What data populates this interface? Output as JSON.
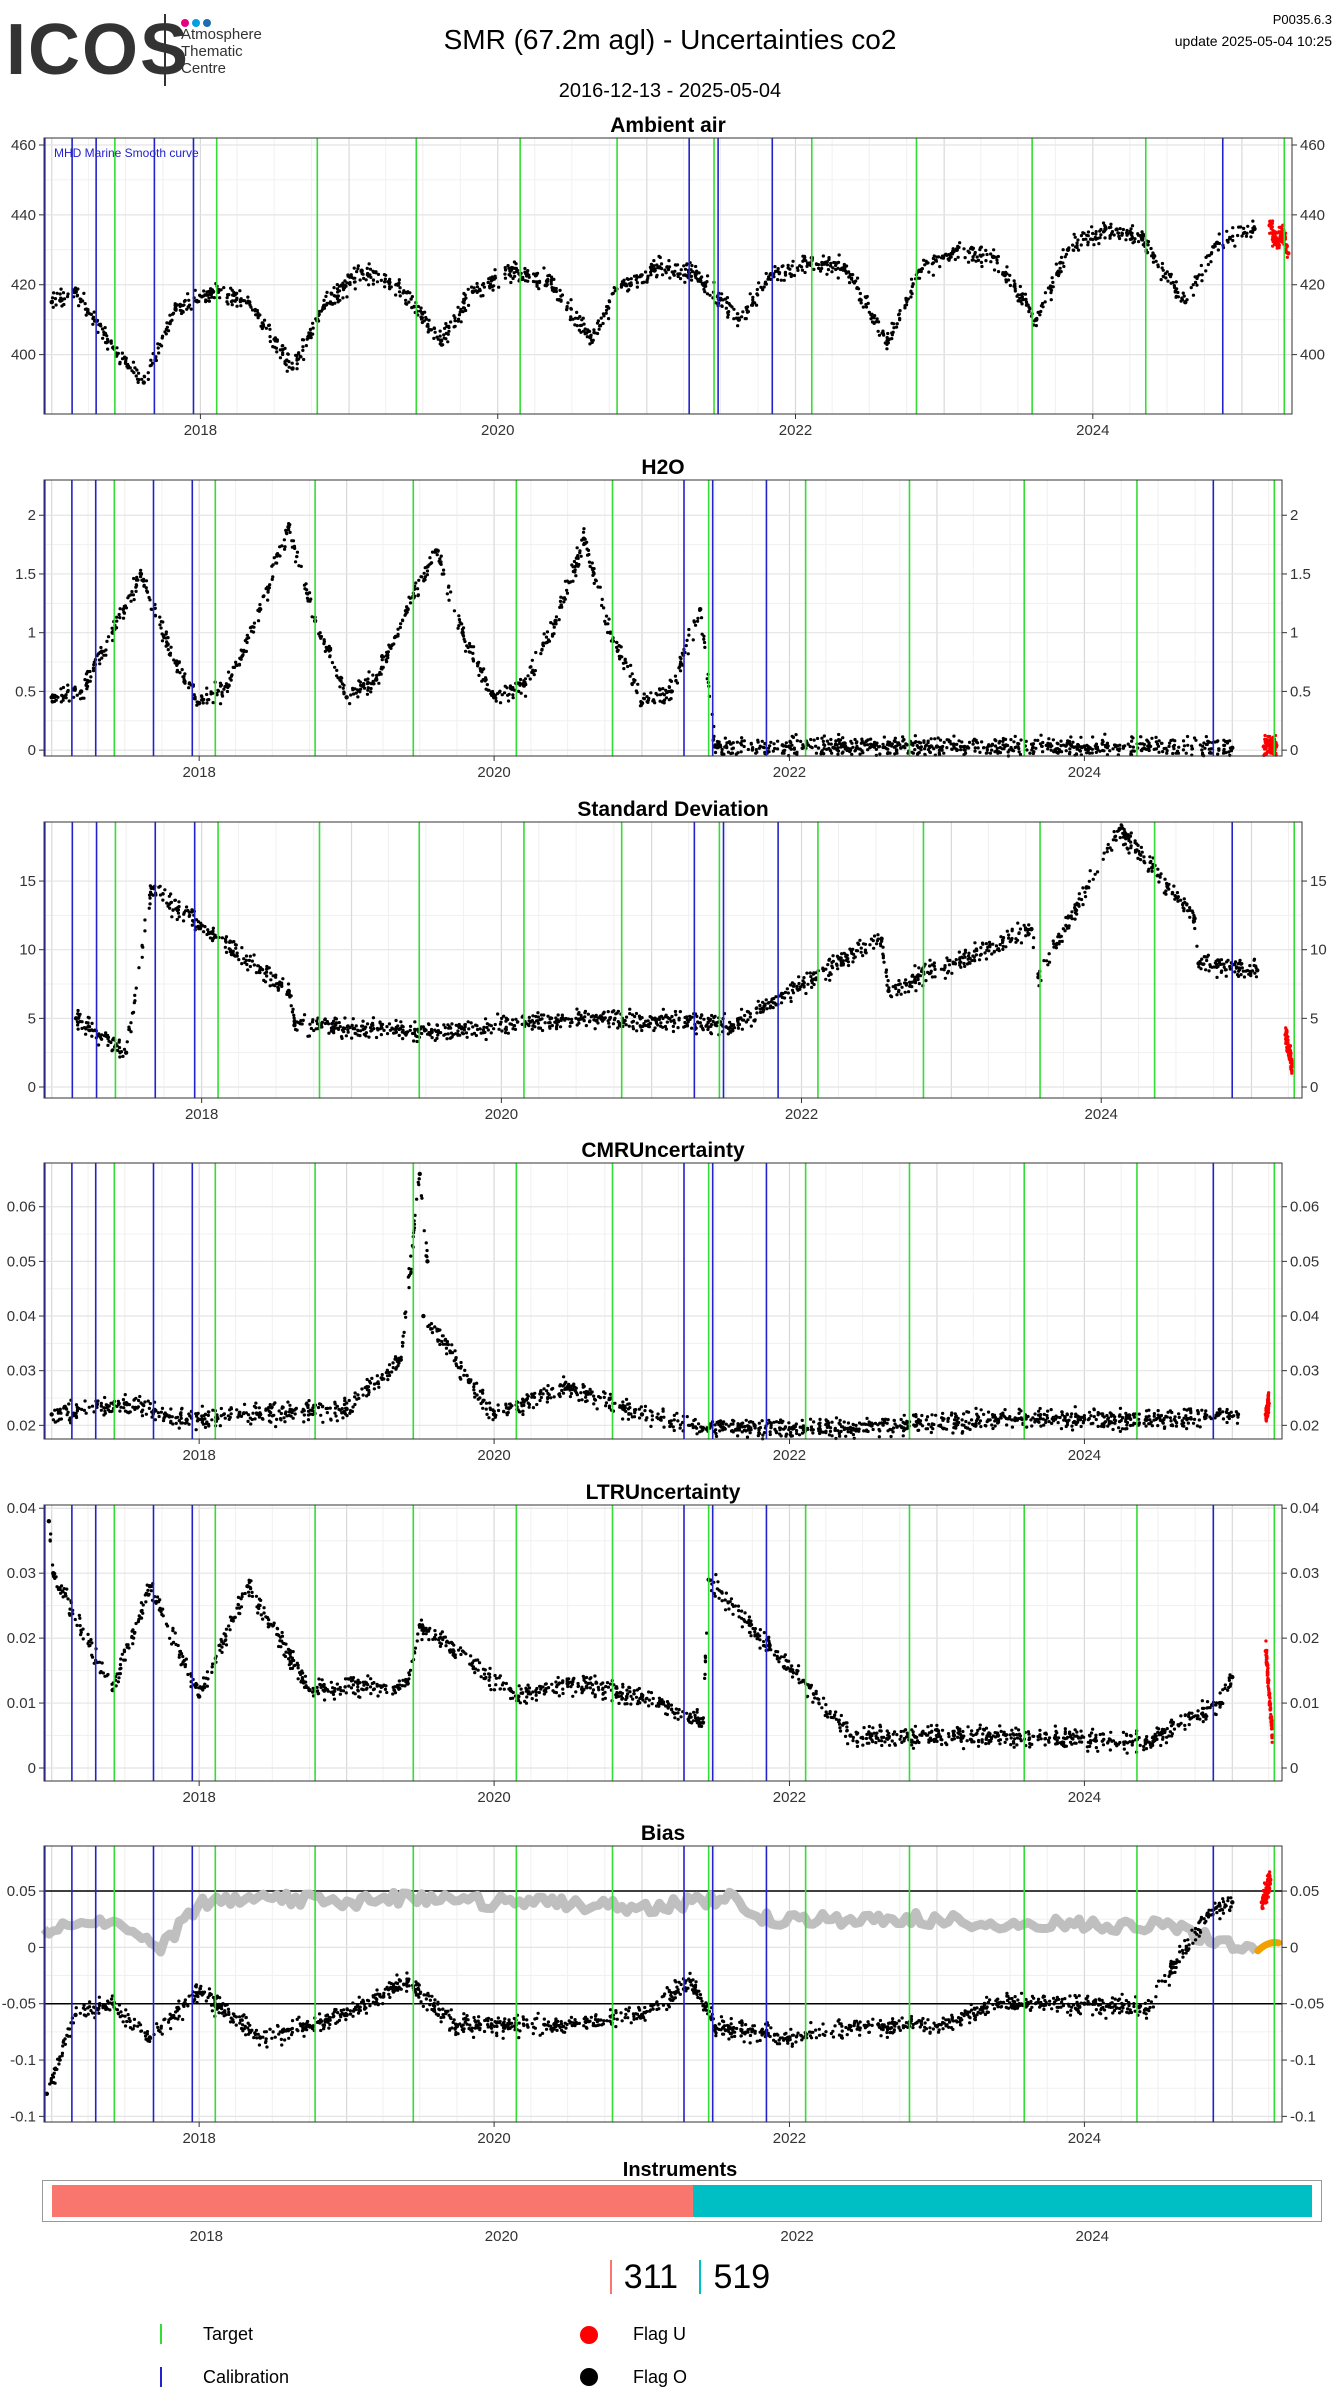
{
  "header": {
    "logo_word": "ICOS",
    "logo_sub": [
      "Atmosphere",
      "Thematic",
      "Centre"
    ],
    "title": "SMR  (67.2m agl) - Uncertainties co2",
    "date_range": "2016-12-13 - 2025-05-04",
    "version": "P0035.6.3",
    "update": "update  2025-05-04 10:25"
  },
  "colors": {
    "target": "#33dd33",
    "calibration": "#2222cc",
    "flag_u": "#ff0000",
    "flag_o": "#000000",
    "instrument_311": "#f8766d",
    "instrument_519": "#00bfc4",
    "smooth_curve": "#bfbfbf",
    "fit_orange": "#f0a000",
    "logo_dots": [
      "#e6007e",
      "#00a0e0",
      "#1d6db0"
    ]
  },
  "chart_data": [
    {
      "type": "scatter",
      "title": "Ambient air",
      "annotation": "MHD Marine Smooth curve",
      "x_range": [
        "2016-12-13",
        "2025-05-04"
      ],
      "ylim": [
        383,
        462
      ],
      "yticks": [
        400,
        420,
        440,
        460
      ],
      "xticks": [
        "2018",
        "2020",
        "2022",
        "2024"
      ],
      "series": [
        {
          "name": "Flag O",
          "color": "#000000",
          "points": [
            [
              "2017-01-01",
              415
            ],
            [
              "2017-03-01",
              418
            ],
            [
              "2017-06-01",
              402
            ],
            [
              "2017-08-15",
              392
            ],
            [
              "2017-11-01",
              413
            ],
            [
              "2018-02-01",
              418
            ],
            [
              "2018-05-01",
              415
            ],
            [
              "2018-08-15",
              396
            ],
            [
              "2018-11-01",
              414
            ],
            [
              "2019-02-01",
              424
            ],
            [
              "2019-05-01",
              420
            ],
            [
              "2019-08-15",
              404
            ],
            [
              "2019-11-01",
              418
            ],
            [
              "2020-02-01",
              424
            ],
            [
              "2020-05-01",
              421
            ],
            [
              "2020-08-15",
              405
            ],
            [
              "2020-11-01",
              420
            ],
            [
              "2021-02-01",
              425
            ],
            [
              "2021-05-01",
              423
            ],
            [
              "2021-08-15",
              410
            ],
            [
              "2021-11-01",
              423
            ],
            [
              "2022-02-01",
              426
            ],
            [
              "2022-05-01",
              425
            ],
            [
              "2022-08-15",
              404
            ],
            [
              "2022-11-01",
              424
            ],
            [
              "2023-02-01",
              430
            ],
            [
              "2023-05-01",
              428
            ],
            [
              "2023-08-15",
              410
            ],
            [
              "2023-11-01",
              430
            ],
            [
              "2024-02-01",
              436
            ],
            [
              "2024-05-01",
              433
            ],
            [
              "2024-08-15",
              415
            ],
            [
              "2024-11-01",
              432
            ],
            [
              "2025-02-01",
              436
            ]
          ]
        },
        {
          "name": "Flag U",
          "color": "#ff0000",
          "points": [
            [
              "2025-03-10",
              437
            ],
            [
              "2025-03-25",
              432
            ],
            [
              "2025-04-10",
              435
            ],
            [
              "2025-04-25",
              429
            ]
          ]
        }
      ]
    },
    {
      "type": "scatter",
      "title": "H2O",
      "x_range": [
        "2016-12-13",
        "2025-05-04"
      ],
      "ylim": [
        -0.05,
        2.3
      ],
      "yticks": [
        0.0,
        0.5,
        1.0,
        1.5,
        2.0
      ],
      "xticks": [
        "2018",
        "2020",
        "2022",
        "2024"
      ],
      "series": [
        {
          "name": "Flag O",
          "color": "#000000",
          "points": [
            [
              "2017-01-01",
              0.45
            ],
            [
              "2017-03-15",
              0.5
            ],
            [
              "2017-06-01",
              1.0
            ],
            [
              "2017-08-10",
              1.5
            ],
            [
              "2017-10-15",
              0.9
            ],
            [
              "2018-01-01",
              0.4
            ],
            [
              "2018-03-15",
              0.55
            ],
            [
              "2018-06-01",
              1.2
            ],
            [
              "2018-08-10",
              1.9
            ],
            [
              "2018-10-15",
              1.1
            ],
            [
              "2019-01-01",
              0.45
            ],
            [
              "2019-03-15",
              0.6
            ],
            [
              "2019-06-01",
              1.2
            ],
            [
              "2019-08-10",
              1.7
            ],
            [
              "2019-10-15",
              1.0
            ],
            [
              "2020-01-01",
              0.45
            ],
            [
              "2020-03-15",
              0.55
            ],
            [
              "2020-06-01",
              1.1
            ],
            [
              "2020-08-10",
              1.8
            ],
            [
              "2020-10-15",
              1.0
            ],
            [
              "2021-01-01",
              0.4
            ],
            [
              "2021-03-15",
              0.5
            ],
            [
              "2021-05-25",
              1.2
            ],
            [
              "2021-07-01",
              0.03
            ],
            [
              "2022-01-01",
              0.03
            ],
            [
              "2023-01-01",
              0.03
            ],
            [
              "2024-01-01",
              0.03
            ],
            [
              "2025-01-01",
              0.02
            ]
          ]
        },
        {
          "name": "Flag U",
          "color": "#ff0000",
          "points": [
            [
              "2025-03-20",
              0.03
            ],
            [
              "2025-04-20",
              0.04
            ]
          ]
        }
      ]
    },
    {
      "type": "scatter",
      "title": "Standard Deviation",
      "x_range": [
        "2016-12-13",
        "2025-05-04"
      ],
      "ylim": [
        -0.8,
        19.3
      ],
      "yticks": [
        0,
        5,
        10,
        15
      ],
      "xticks": [
        "2018",
        "2020",
        "2022",
        "2024"
      ],
      "series": [
        {
          "name": "Flag O",
          "color": "#000000",
          "points": [
            [
              "2017-03-01",
              5.0
            ],
            [
              "2017-07-01",
              2.5
            ],
            [
              "2017-09-01",
              14.5
            ],
            [
              "2018-08-01",
              7.0
            ],
            [
              "2018-08-15",
              4.5
            ],
            [
              "2019-07-15",
              4.0
            ],
            [
              "2020-07-15",
              5.0
            ],
            [
              "2021-07-15",
              4.5
            ],
            [
              "2022-07-15",
              10.8
            ],
            [
              "2022-08-01",
              7.0
            ],
            [
              "2023-07-15",
              11.5
            ],
            [
              "2023-08-01",
              8.0
            ],
            [
              "2024-02-15",
              18.8
            ],
            [
              "2024-08-15",
              12.3
            ],
            [
              "2024-08-25",
              9.0
            ],
            [
              "2025-01-15",
              8.5
            ]
          ]
        },
        {
          "name": "Flag U",
          "color": "#ff0000",
          "points": [
            [
              "2025-03-25",
              3.8
            ],
            [
              "2025-04-10",
              1.5
            ]
          ]
        }
      ]
    },
    {
      "type": "scatter",
      "title": "CMRUncertainty",
      "x_range": [
        "2016-12-13",
        "2025-05-04"
      ],
      "ylim": [
        0.0175,
        0.068
      ],
      "yticks": [
        0.02,
        0.03,
        0.04,
        0.05,
        0.06
      ],
      "xticks": [
        "2018",
        "2020",
        "2022",
        "2024"
      ],
      "series": [
        {
          "name": "Flag O",
          "color": "#000000",
          "points": [
            [
              "2017-01-01",
              0.022
            ],
            [
              "2017-07-01",
              0.024
            ],
            [
              "2017-12-01",
              0.021
            ],
            [
              "2018-06-01",
              0.022
            ],
            [
              "2019-01-01",
              0.023
            ],
            [
              "2019-05-15",
              0.032
            ],
            [
              "2019-07-01",
              0.066
            ],
            [
              "2019-07-20",
              0.05
            ],
            [
              "2019-07-10",
              0.04
            ],
            [
              "2020-01-01",
              0.022
            ],
            [
              "2020-07-01",
              0.027
            ],
            [
              "2021-01-01",
              0.022
            ],
            [
              "2021-06-01",
              0.0195
            ],
            [
              "2022-06-01",
              0.0195
            ],
            [
              "2023-06-01",
              0.021
            ],
            [
              "2024-06-01",
              0.021
            ],
            [
              "2025-01-15",
              0.022
            ]
          ]
        },
        {
          "name": "Flag U",
          "color": "#ff0000",
          "points": [
            [
              "2025-03-25",
              0.022
            ],
            [
              "2025-04-01",
              0.024
            ]
          ]
        }
      ]
    },
    {
      "type": "scatter",
      "title": "LTRUncertainty",
      "x_range": [
        "2016-12-13",
        "2025-05-04"
      ],
      "ylim": [
        -0.002,
        0.0405
      ],
      "yticks": [
        0.0,
        0.01,
        0.02,
        0.03,
        0.04
      ],
      "xticks": [
        "2018",
        "2020",
        "2022",
        "2024"
      ],
      "series": [
        {
          "name": "Flag O",
          "color": "#000000",
          "points": [
            [
              "2016-12-25",
              0.038
            ],
            [
              "2017-01-05",
              0.03
            ],
            [
              "2017-06-01",
              0.012
            ],
            [
              "2017-09-01",
              0.028
            ],
            [
              "2018-01-01",
              0.011
            ],
            [
              "2018-05-01",
              0.028
            ],
            [
              "2018-10-01",
              0.012
            ],
            [
              "2019-06-01",
              0.013
            ],
            [
              "2019-07-01",
              0.022
            ],
            [
              "2020-03-01",
              0.011
            ],
            [
              "2020-07-01",
              0.013
            ],
            [
              "2021-01-01",
              0.011
            ],
            [
              "2021-06-01",
              0.007
            ],
            [
              "2021-06-15",
              0.029
            ],
            [
              "2022-06-01",
              0.005
            ],
            [
              "2023-06-01",
              0.005
            ],
            [
              "2024-06-01",
              0.004
            ],
            [
              "2024-12-01",
              0.01
            ],
            [
              "2025-01-01",
              0.014
            ]
          ]
        },
        {
          "name": "Flag U",
          "color": "#ff0000",
          "points": [
            [
              "2025-03-25",
              0.018
            ],
            [
              "2025-04-10",
              0.005
            ]
          ]
        }
      ]
    },
    {
      "type": "scatter",
      "title": "Bias",
      "x_range": [
        "2016-12-13",
        "2025-05-04"
      ],
      "ylim": [
        -0.155,
        0.09
      ],
      "yticks": [
        -0.15,
        -0.1,
        -0.05,
        0.0,
        0.05
      ],
      "xticks": [
        "2018",
        "2020",
        "2022",
        "2024"
      ],
      "reference_lines": [
        0.05,
        -0.05
      ],
      "smooth_curve": {
        "color": "#bfbfbf",
        "points": [
          [
            "2016-12-13",
            0.015
          ],
          [
            "2017-06-01",
            0.025
          ],
          [
            "2017-10-01",
            0.0
          ],
          [
            "2018-01-01",
            0.04
          ],
          [
            "2018-06-01",
            0.045
          ],
          [
            "2019-01-01",
            0.04
          ],
          [
            "2019-06-01",
            0.045
          ],
          [
            "2020-01-01",
            0.04
          ],
          [
            "2020-06-01",
            0.04
          ],
          [
            "2021-01-01",
            0.035
          ],
          [
            "2021-09-01",
            0.045
          ],
          [
            "2021-10-01",
            0.025
          ],
          [
            "2022-06-01",
            0.025
          ],
          [
            "2023-01-01",
            0.025
          ],
          [
            "2023-06-01",
            0.02
          ],
          [
            "2024-01-01",
            0.02
          ],
          [
            "2024-08-01",
            0.02
          ],
          [
            "2025-01-01",
            0.0
          ],
          [
            "2025-03-01",
            0.0
          ]
        ]
      },
      "series": [
        {
          "name": "Flag O",
          "color": "#000000",
          "points": [
            [
              "2016-12-20",
              -0.13
            ],
            [
              "2017-03-01",
              -0.06
            ],
            [
              "2017-06-01",
              -0.05
            ],
            [
              "2017-09-01",
              -0.08
            ],
            [
              "2018-01-01",
              -0.04
            ],
            [
              "2018-06-01",
              -0.08
            ],
            [
              "2019-01-01",
              -0.06
            ],
            [
              "2019-06-01",
              -0.03
            ],
            [
              "2019-10-01",
              -0.07
            ],
            [
              "2020-06-01",
              -0.07
            ],
            [
              "2021-01-01",
              -0.06
            ],
            [
              "2021-05-01",
              -0.03
            ],
            [
              "2021-07-01",
              -0.07
            ],
            [
              "2022-01-01",
              -0.08
            ],
            [
              "2022-06-01",
              -0.07
            ],
            [
              "2023-01-01",
              -0.07
            ],
            [
              "2023-06-01",
              -0.05
            ],
            [
              "2024-01-01",
              -0.05
            ],
            [
              "2024-06-01",
              -0.055
            ],
            [
              "2024-11-01",
              0.03
            ],
            [
              "2025-01-01",
              0.04
            ]
          ]
        },
        {
          "name": "Flag U",
          "color": "#ff0000",
          "points": [
            [
              "2025-03-15",
              0.04
            ],
            [
              "2025-04-05",
              0.06
            ]
          ]
        }
      ]
    }
  ],
  "event_lines": {
    "target_dates": [
      "2017-06-05",
      "2018-02-10",
      "2018-10-15",
      "2019-06-15",
      "2020-02-25",
      "2020-10-20",
      "2021-06-15",
      "2022-02-10",
      "2022-10-25",
      "2023-08-05",
      "2024-05-10",
      "2025-04-15"
    ],
    "calibration_dates": [
      "2016-12-15",
      "2017-02-20",
      "2017-04-20",
      "2017-09-10",
      "2017-12-15",
      "2021-04-15",
      "2021-06-25",
      "2021-11-05",
      "2024-11-15"
    ]
  },
  "instruments": {
    "title": "Instruments",
    "xticks": [
      "2018",
      "2020",
      "2022",
      "2024"
    ],
    "items": [
      {
        "id": "311",
        "label": "311",
        "start": "2016-12-13",
        "end": "2021-04-15",
        "color": "#f8766d"
      },
      {
        "id": "519",
        "label": "519",
        "start": "2021-04-15",
        "end": "2025-06-25",
        "color": "#00bfc4"
      }
    ]
  },
  "legend": {
    "target": "Target",
    "calibration": "Calibration",
    "flag_u": "Flag U",
    "flag_o": "Flag O"
  }
}
